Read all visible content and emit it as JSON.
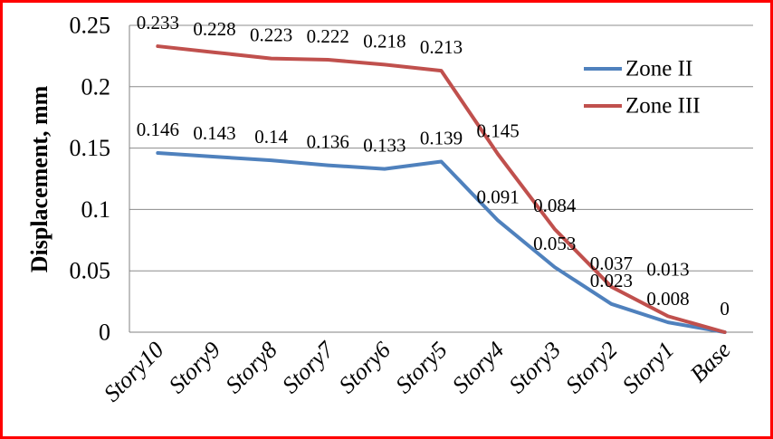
{
  "chart_data": {
    "type": "line",
    "title": "",
    "xlabel": "",
    "ylabel": "Displacement, mm",
    "categories": [
      "Story10",
      "Story9",
      "Story8",
      "Story7",
      "Story6",
      "Story5",
      "Story4",
      "Story3",
      "Story2",
      "Story1",
      "Base"
    ],
    "series": [
      {
        "name": "Zone II",
        "color": "#4F81BD",
        "values": [
          0.146,
          0.143,
          0.14,
          0.136,
          0.133,
          0.139,
          0.091,
          0.053,
          0.023,
          0.008,
          0
        ],
        "labels": [
          "0.146",
          "0.143",
          "0.14",
          "0.136",
          "0.133",
          "0.139",
          "0.091",
          "0.053",
          "0.023",
          "0.008",
          ""
        ]
      },
      {
        "name": "Zone III",
        "color": "#C0504D",
        "values": [
          0.233,
          0.228,
          0.223,
          0.222,
          0.218,
          0.213,
          0.145,
          0.084,
          0.037,
          0.013,
          0
        ],
        "labels": [
          "0.233",
          "0.228",
          "0.223",
          "0.222",
          "0.218",
          "0.213",
          "0.145",
          "0.084",
          "0.037",
          "0.013",
          "0"
        ]
      }
    ],
    "y_axis": {
      "min": 0,
      "max": 0.25,
      "step": 0.05,
      "tick_labels": [
        "0",
        "0.05",
        "0.1",
        "0.15",
        "0.2",
        "0.25"
      ]
    },
    "x_axis": {
      "label_rotation_deg": 45,
      "italic": true
    },
    "grid": true,
    "legend": {
      "position": "inside-right-top",
      "entries": [
        "Zone II",
        "Zone III"
      ]
    },
    "label_dy_overrides": [
      {
        "series": "Zone III",
        "index": 9,
        "dy": -52
      }
    ],
    "colors": {
      "grid": "#8C8C8C",
      "axis": "#808080",
      "text": "#000000",
      "frame_border": "#FF0000",
      "background": "#FFFFFF"
    }
  }
}
